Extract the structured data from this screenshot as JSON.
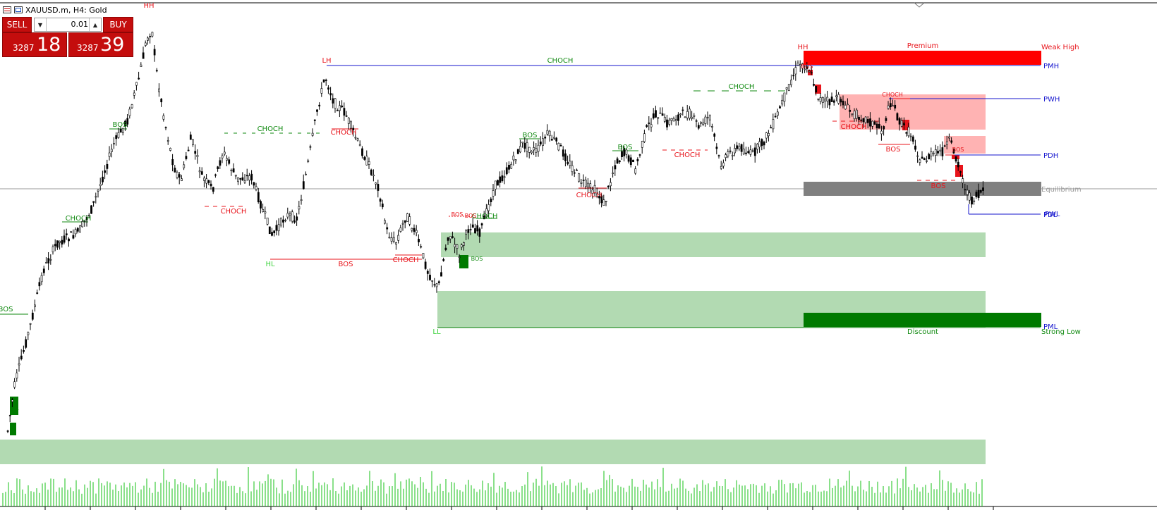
{
  "window": {
    "title": "XAUUSD.m, H4:  Gold"
  },
  "trade_panel": {
    "sell_label": "SELL",
    "buy_label": "BUY",
    "lot_value": "0.01",
    "sell_price_prefix": "3287",
    "sell_price_big": "18",
    "buy_price_prefix": "3287",
    "buy_price_big": "39"
  },
  "colors": {
    "bull_label": "#118a11",
    "bear_label": "#e8141b",
    "supply_zone": "#ffb3b3",
    "demand_zone": "#b2dab2",
    "premium_zone": "#ff0000",
    "discount_zone": "#007a00",
    "equilibrium_zone": "#808080",
    "level_line": "#1414ce"
  },
  "chart_labels": {
    "premium": "Premium",
    "discount": "Discount",
    "equilibrium": "Equilibrium",
    "weak_high": "Weak High",
    "strong_low": "Strong Low",
    "pmh": "PMH",
    "pwh": "PWH",
    "pdh": "PDH",
    "pdl": "PDL",
    "pwl": "PWL",
    "pml": "PML",
    "swing_labels": [
      "HH",
      "LH",
      "HL",
      "LL",
      "HH"
    ],
    "structure_labels": [
      "CHOCH",
      "BOS",
      "CHOCH",
      "CHOCH",
      "CHOCH",
      "BOS",
      "CHOCH",
      "BOS",
      "CHOCH",
      "CHOCH",
      "CHOCH",
      "CHOCH",
      "BOS",
      "BOS",
      "CHOCH",
      "BOS",
      "BOS",
      "BOS",
      "CHOCH",
      "BOS",
      "BOS",
      "CHOCH",
      "BOS",
      "BOS"
    ],
    "block_labels": [
      "BOS",
      "BOS",
      "BOS",
      "BOS"
    ]
  }
}
